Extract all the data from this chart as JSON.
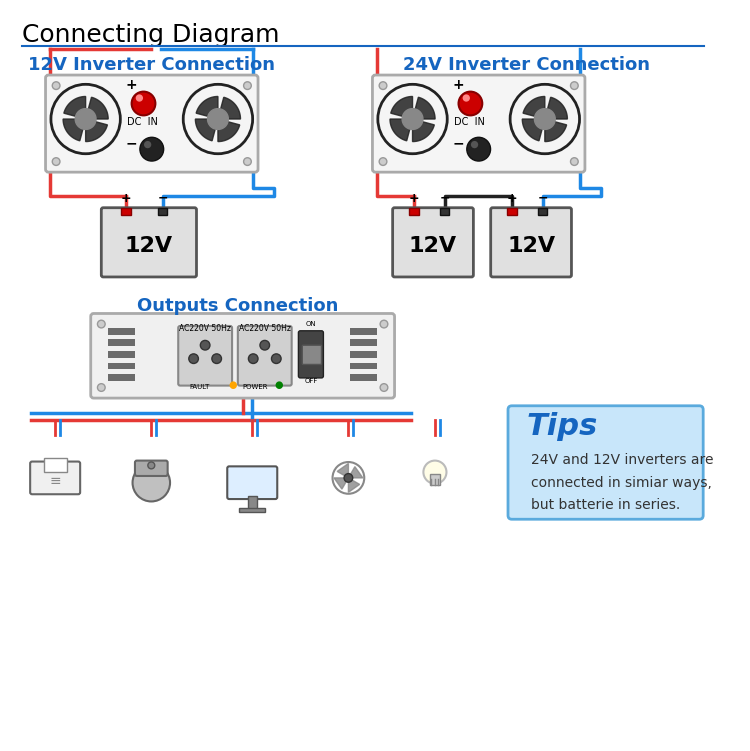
{
  "title": "Connecting Diagram",
  "title_color": "#000000",
  "title_fontsize": 18,
  "background_color": "#ffffff",
  "section1_title": "12V Inverter Connection",
  "section2_title": "24V Inverter Connection",
  "section3_title": "Outputs Connection",
  "section_title_color": "#1565c0",
  "section_title_fontsize": 13,
  "tips_title": "Tips",
  "tips_text": "24V and 12V inverters are\nconnected in simiar ways,\nbut batterie in series.",
  "tips_bg": "#c8e6fa",
  "tips_border": "#5aaadd",
  "wire_red": "#e53935",
  "wire_blue": "#1e88e5",
  "inverter_bg": "#f5f5f5",
  "inverter_border": "#aaaaaa",
  "battery_bg": "#e0e0e0",
  "battery_border": "#555555",
  "fan_color": "#222222",
  "led_color": "#cc0000",
  "knob_color": "#333333",
  "outlet_color": "#999999",
  "switch_color": "#333333"
}
